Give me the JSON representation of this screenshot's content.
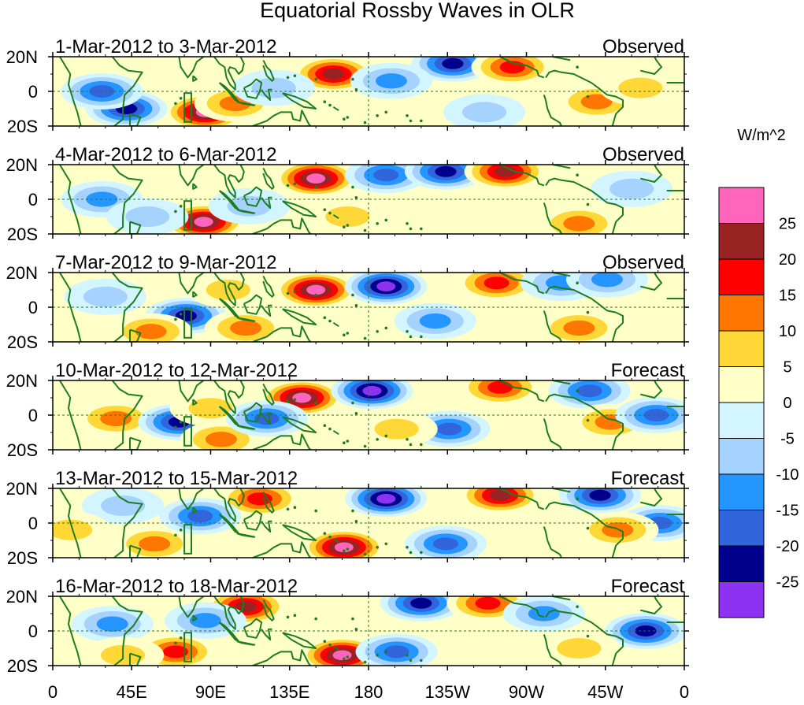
{
  "chart_data": {
    "type": "heatmap",
    "title": "Equatorial Rossby Waves in OLR",
    "units_label": "W/m^2",
    "x_ticks": [
      "0",
      "45E",
      "90E",
      "135E",
      "180",
      "135W",
      "90W",
      "45W",
      "0"
    ],
    "x_tick_values": [
      0,
      45,
      90,
      135,
      180,
      225,
      270,
      315,
      360
    ],
    "y_ticks": [
      "20N",
      "0",
      "20S"
    ],
    "y_tick_values": [
      20,
      0,
      -20
    ],
    "xlim": [
      0,
      360
    ],
    "ylim": [
      -20,
      20
    ],
    "colorbar": {
      "levels": [
        25,
        20,
        15,
        10,
        5,
        0,
        -5,
        -10,
        -15,
        -20,
        -25
      ],
      "labels": [
        "25",
        "20",
        "15",
        "10",
        "5",
        "0",
        "-5",
        "-10",
        "-15",
        "-20",
        "-25"
      ],
      "colors": [
        "#ff66bb",
        "#992222",
        "#ff0000",
        "#ff7700",
        "#ffd838",
        "#ffffc8",
        "#d2f5ff",
        "#a5d2ff",
        "#2596ff",
        "#3264dc",
        "#00008c",
        "#8c32f0"
      ]
    },
    "panels": [
      {
        "period": "1-Mar-2012 to 3-Mar-2012",
        "status": "Observed",
        "anomalies": [
          {
            "lon": 160,
            "lat": 10,
            "value": 25
          },
          {
            "lon": 87,
            "lat": -12,
            "value": 26
          },
          {
            "lon": 104,
            "lat": -7,
            "value": 15
          },
          {
            "lon": 42,
            "lat": -10,
            "value": -23
          },
          {
            "lon": 28,
            "lat": 0,
            "value": -18
          },
          {
            "lon": 228,
            "lat": 16,
            "value": -24
          },
          {
            "lon": 262,
            "lat": 14,
            "value": 18
          },
          {
            "lon": 193,
            "lat": 6,
            "value": -12
          },
          {
            "lon": 310,
            "lat": -6,
            "value": 13
          },
          {
            "lon": 335,
            "lat": 2,
            "value": 8
          },
          {
            "lon": 246,
            "lat": -12,
            "value": -8
          },
          {
            "lon": 126,
            "lat": 2,
            "value": -8
          }
        ]
      },
      {
        "period": "4-Mar-2012 to 6-Mar-2012",
        "status": "Observed",
        "anomalies": [
          {
            "lon": 150,
            "lat": 12,
            "value": 27
          },
          {
            "lon": 86,
            "lat": -13,
            "value": 26
          },
          {
            "lon": 190,
            "lat": 14,
            "value": -20
          },
          {
            "lon": 224,
            "lat": 16,
            "value": -23
          },
          {
            "lon": 258,
            "lat": 16,
            "value": 22
          },
          {
            "lon": 300,
            "lat": -14,
            "value": 13
          },
          {
            "lon": 28,
            "lat": 0,
            "value": -12
          },
          {
            "lon": 54,
            "lat": -10,
            "value": -10
          },
          {
            "lon": 112,
            "lat": -4,
            "value": -10
          },
          {
            "lon": 168,
            "lat": -10,
            "value": 8
          },
          {
            "lon": 330,
            "lat": 6,
            "value": -6
          }
        ]
      },
      {
        "period": "7-Mar-2012 to 9-Mar-2012",
        "status": "Observed",
        "anomalies": [
          {
            "lon": 150,
            "lat": 10,
            "value": 27
          },
          {
            "lon": 190,
            "lat": 12,
            "value": -26
          },
          {
            "lon": 76,
            "lat": -5,
            "value": -22
          },
          {
            "lon": 56,
            "lat": -14,
            "value": 14
          },
          {
            "lon": 110,
            "lat": -12,
            "value": 12
          },
          {
            "lon": 100,
            "lat": 10,
            "value": 8
          },
          {
            "lon": 253,
            "lat": 14,
            "value": 16
          },
          {
            "lon": 290,
            "lat": 14,
            "value": -12
          },
          {
            "lon": 316,
            "lat": 16,
            "value": -14
          },
          {
            "lon": 218,
            "lat": -8,
            "value": -14
          },
          {
            "lon": 300,
            "lat": -12,
            "value": 12
          },
          {
            "lon": 30,
            "lat": 6,
            "value": -6
          }
        ]
      },
      {
        "period": "10-Mar-2012 to 12-Mar-2012",
        "status": "Forecast",
        "anomalies": [
          {
            "lon": 142,
            "lat": 10,
            "value": 26
          },
          {
            "lon": 182,
            "lat": 14,
            "value": -26
          },
          {
            "lon": 36,
            "lat": -2,
            "value": 12
          },
          {
            "lon": 72,
            "lat": -4,
            "value": -22
          },
          {
            "lon": 90,
            "lat": 4,
            "value": 8
          },
          {
            "lon": 96,
            "lat": -14,
            "value": 14
          },
          {
            "lon": 122,
            "lat": -2,
            "value": -16
          },
          {
            "lon": 255,
            "lat": 16,
            "value": 20
          },
          {
            "lon": 306,
            "lat": 14,
            "value": -18
          },
          {
            "lon": 226,
            "lat": -8,
            "value": -20
          },
          {
            "lon": 318,
            "lat": -4,
            "value": 12
          },
          {
            "lon": 344,
            "lat": 0,
            "value": -18
          },
          {
            "lon": 196,
            "lat": -8,
            "value": 8
          }
        ]
      },
      {
        "period": "13-Mar-2012 to 15-Mar-2012",
        "status": "Forecast",
        "anomalies": [
          {
            "lon": 166,
            "lat": -14,
            "value": 26
          },
          {
            "lon": 190,
            "lat": 14,
            "value": -26
          },
          {
            "lon": 118,
            "lat": 14,
            "value": 20
          },
          {
            "lon": 58,
            "lat": -12,
            "value": 14
          },
          {
            "lon": 84,
            "lat": 4,
            "value": -18
          },
          {
            "lon": 255,
            "lat": 16,
            "value": 22
          },
          {
            "lon": 312,
            "lat": 16,
            "value": -22
          },
          {
            "lon": 224,
            "lat": -12,
            "value": -18
          },
          {
            "lon": 346,
            "lat": 0,
            "value": -20
          },
          {
            "lon": 40,
            "lat": 10,
            "value": -10
          },
          {
            "lon": 322,
            "lat": -4,
            "value": 12
          },
          {
            "lon": 10,
            "lat": -4,
            "value": 8
          }
        ]
      },
      {
        "period": "16-Mar-2012 to 18-Mar-2012",
        "status": "Forecast",
        "anomalies": [
          {
            "lon": 165,
            "lat": -14,
            "value": 27
          },
          {
            "lon": 110,
            "lat": 14,
            "value": 22
          },
          {
            "lon": 70,
            "lat": -12,
            "value": 20
          },
          {
            "lon": 87,
            "lat": 6,
            "value": -14
          },
          {
            "lon": 210,
            "lat": 16,
            "value": -22
          },
          {
            "lon": 248,
            "lat": 16,
            "value": 20
          },
          {
            "lon": 280,
            "lat": 10,
            "value": -14
          },
          {
            "lon": 338,
            "lat": 0,
            "value": -22
          },
          {
            "lon": 196,
            "lat": -12,
            "value": -16
          },
          {
            "lon": 34,
            "lat": 4,
            "value": -12
          },
          {
            "lon": 40,
            "lat": -14,
            "value": 10
          },
          {
            "lon": 300,
            "lat": -10,
            "value": 10
          }
        ]
      }
    ]
  }
}
